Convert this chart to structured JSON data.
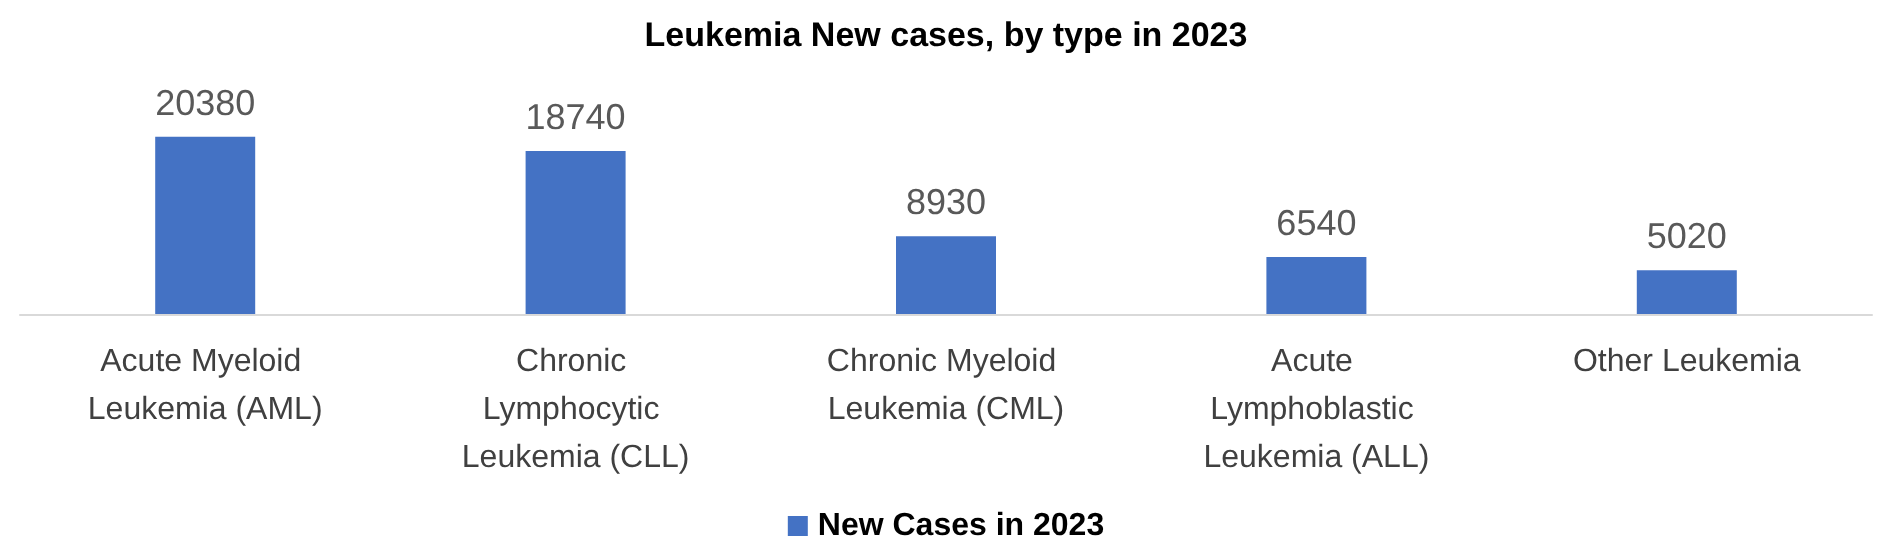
{
  "chart_data": {
    "type": "bar",
    "title": "Leukemia New cases, by type in 2023",
    "categories": [
      "Acute Myeloid Leukemia (AML)",
      "Chronic Lymphocytic Leukemia (CLL)",
      "Chronic Myeloid Leukemia (CML)",
      "Acute Lymphoblastic Leukemia (ALL)",
      "Other Leukemia"
    ],
    "series": [
      {
        "name": "New Cases in 2023",
        "color": "#4472c4",
        "values": [
          20380,
          18740,
          8930,
          6540,
          5020
        ]
      }
    ],
    "data_labels": true,
    "legend": "bottom"
  }
}
